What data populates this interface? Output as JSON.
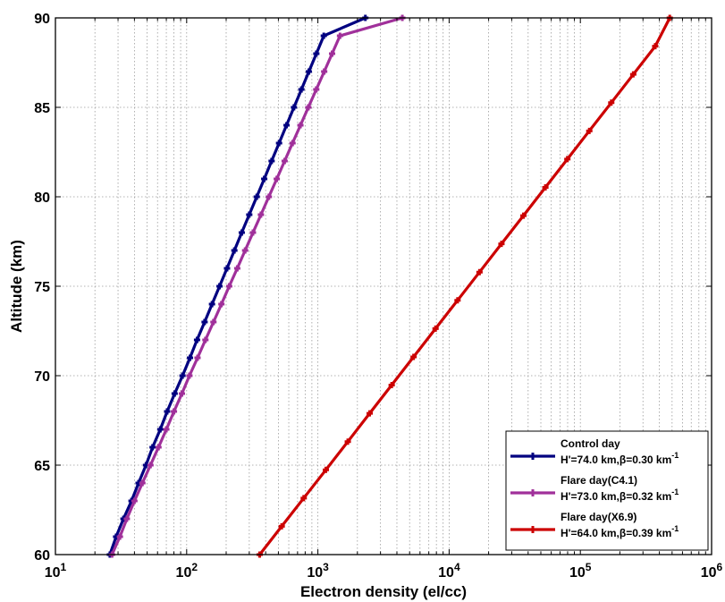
{
  "chart_data": {
    "type": "line",
    "xlabel": "Electron density (el/cc)",
    "ylabel": "Altitude (km)",
    "xscale": "log",
    "xlim": [
      10,
      1000000
    ],
    "ylim": [
      60,
      90
    ],
    "grid": true,
    "legend_position": "bottom-right",
    "x_tick_values": [
      10,
      100,
      1000,
      10000,
      100000,
      1000000
    ],
    "x_tick_labels": [
      {
        "base": "10",
        "exp": "1"
      },
      {
        "base": "10",
        "exp": "2"
      },
      {
        "base": "10",
        "exp": "3"
      },
      {
        "base": "10",
        "exp": "4"
      },
      {
        "base": "10",
        "exp": "5"
      },
      {
        "base": "10",
        "exp": "6"
      }
    ],
    "y_ticks": [
      60,
      65,
      70,
      75,
      80,
      85,
      90
    ],
    "y": [
      60,
      61,
      62,
      63,
      64,
      65,
      66,
      67,
      68,
      69,
      70,
      71,
      72,
      73,
      74,
      75,
      76,
      77,
      78,
      79,
      80,
      81,
      82,
      83,
      84,
      85,
      86,
      87,
      88,
      89,
      90
    ],
    "series": [
      {
        "legend_title": "Control day",
        "legend_params": {
          "main": "H'=74.0 km,β=0.30 km",
          "sup": "-1"
        },
        "color": "#000080",
        "x": [
          26,
          29,
          33,
          38,
          43,
          49,
          55,
          63,
          71,
          81,
          93,
          106,
          120,
          137,
          156,
          178,
          203,
          231,
          263,
          300,
          342,
          390,
          444,
          506,
          577,
          657,
          749,
          853,
          973,
          1109,
          2300
        ]
      },
      {
        "legend_title": "Flare day(C4.1)",
        "legend_params": {
          "main": "H'=73.0 km,β=0.32 km",
          "sup": "-1"
        },
        "color": "#A0309A",
        "x": [
          27,
          31,
          35,
          40,
          46,
          53,
          61,
          70,
          80,
          92,
          105,
          121,
          139,
          160,
          184,
          211,
          243,
          279,
          320,
          368,
          423,
          486,
          558,
          641,
          736,
          846,
          972,
          1117,
          1283,
          1474,
          4400
        ]
      },
      {
        "legend_title": "Flare day(X6.9)",
        "legend_params": {
          "main": "H'=64.0 km,β=0.39 km",
          "sup": "-1"
        },
        "color": "#CC0000",
        "x": [
          360,
          530,
          780,
          1150,
          1690,
          2480,
          3650,
          5360,
          7880,
          11590,
          17040,
          25050,
          36830,
          54150,
          79610,
          117000,
          172000,
          253000,
          372000,
          480000
        ]
      }
    ]
  }
}
